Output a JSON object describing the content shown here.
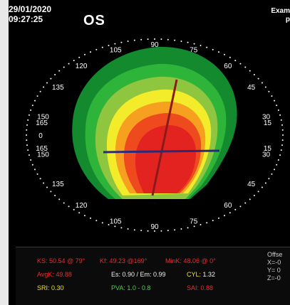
{
  "header": {
    "date": "29/01/2020",
    "time": "09:27:25",
    "eye": "OS",
    "exam_line1": "Exam",
    "exam_line2": "p"
  },
  "map": {
    "angle_ticks": [
      "105",
      "90",
      "75",
      "120",
      "60",
      "135",
      "45",
      "150",
      "30",
      "165",
      "15",
      "0",
      "15",
      "165",
      "30",
      "150",
      "45",
      "135",
      "60",
      "120",
      "75",
      "90",
      "105"
    ]
  },
  "stats": {
    "ks": "KS: 50.54 @ 79°",
    "kf": "Kf: 49.23 @169°",
    "mink": "MinK: 48.06 @ 0°",
    "avgk": "AvgK: 49.88",
    "es_em": "Es: 0.90 / Em: 0.99",
    "cyl_label": "CYL:",
    "cyl_value": "1.32",
    "sri": "SRI: 0.30",
    "pva": "PVA:  1.0 - 0.8",
    "sai": "SAI: 0.88",
    "offset_title": "Offse",
    "offset_x": "X=-0",
    "offset_y": "Y= 0",
    "offset_z": "Z=-0"
  },
  "colors": {
    "dark_green": "#138a2e",
    "green": "#2fb43a",
    "light_green": "#8ec63f",
    "yellow": "#f3ec2a",
    "orange": "#f7a020",
    "red_orange": "#ee4a1e",
    "red": "#e2231f",
    "axis": "#8b1a1a",
    "axis2": "#2a2a7a"
  }
}
